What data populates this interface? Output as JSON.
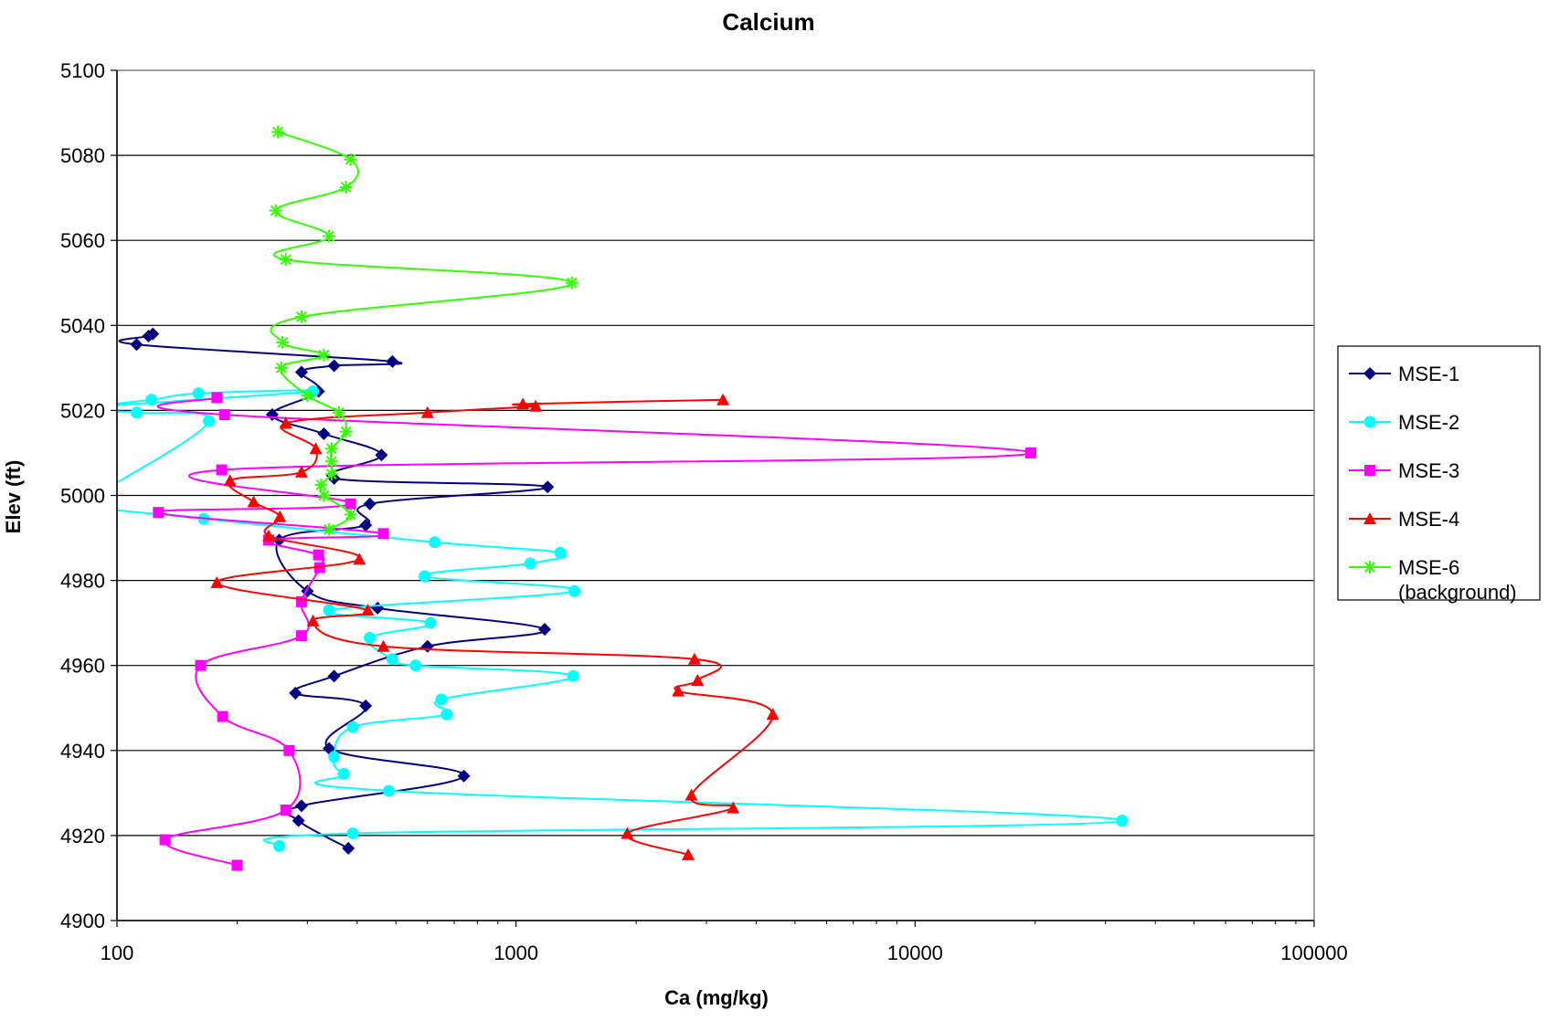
{
  "chart_data": {
    "type": "scatter",
    "title": "Calcium",
    "xlabel": "Ca (mg/kg)",
    "ylabel": "Elev (ft)",
    "x_scale": "log",
    "xlim": [
      100,
      100000
    ],
    "ylim": [
      4900,
      5100
    ],
    "x_ticks": [
      "100",
      "1000",
      "10000",
      "100000"
    ],
    "y_ticks": [
      "4900",
      "4920",
      "4940",
      "4960",
      "4980",
      "5000",
      "5020",
      "5040",
      "5060",
      "5080",
      "5100"
    ],
    "grid": "horizontal major gridlines",
    "legend_position": "right",
    "series": [
      {
        "name": "MSE-1",
        "color": "#000080",
        "marker": "diamond",
        "points": [
          [
            123,
            5038
          ],
          [
            120,
            5037.5
          ],
          [
            112,
            5035.5
          ],
          [
            490,
            5031.5
          ],
          [
            350,
            5030.5
          ],
          [
            290,
            5029
          ],
          [
            320,
            5024.5
          ],
          [
            245,
            5019
          ],
          [
            330,
            5014.5
          ],
          [
            460,
            5009.5
          ],
          [
            350,
            5004
          ],
          [
            1200,
            5002
          ],
          [
            430,
            4998
          ],
          [
            420,
            4993
          ],
          [
            255,
            4989.5
          ],
          [
            300,
            4977.5
          ],
          [
            450,
            4973.5
          ],
          [
            1180,
            4968.5
          ],
          [
            600,
            4964.5
          ],
          [
            350,
            4957.5
          ],
          [
            280,
            4953.5
          ],
          [
            420,
            4950.5
          ],
          [
            340,
            4940.5
          ],
          [
            740,
            4934
          ],
          [
            290,
            4927
          ],
          [
            285,
            4923.5
          ],
          [
            380,
            4917
          ]
        ]
      },
      {
        "name": "MSE-2",
        "color": "#00ffff",
        "marker": "circle",
        "points": [
          [
            88,
            5021
          ],
          [
            122,
            5022.5
          ],
          [
            160,
            5024
          ],
          [
            310,
            5024.5
          ],
          [
            82,
            5020.5
          ],
          [
            112,
            5019.5
          ],
          [
            170,
            5017.5
          ],
          [
            96,
            5002
          ],
          [
            80,
            4998
          ],
          [
            165,
            4994.5
          ],
          [
            625,
            4989
          ],
          [
            1290,
            4986.5
          ],
          [
            1085,
            4984
          ],
          [
            590,
            4981
          ],
          [
            1400,
            4977.5
          ],
          [
            340,
            4973
          ],
          [
            610,
            4970
          ],
          [
            430,
            4966.5
          ],
          [
            490,
            4961.5
          ],
          [
            560,
            4960
          ],
          [
            1390,
            4957.5
          ],
          [
            650,
            4952
          ],
          [
            670,
            4948.5
          ],
          [
            390,
            4945.5
          ],
          [
            350,
            4938.5
          ],
          [
            370,
            4934.5
          ],
          [
            480,
            4930.5
          ],
          [
            33000,
            4923.5
          ],
          [
            390,
            4920.5
          ],
          [
            255,
            4917.5
          ]
        ]
      },
      {
        "name": "MSE-3",
        "color": "#ff00ff",
        "marker": "square",
        "points": [
          [
            178,
            5023
          ],
          [
            186,
            5019
          ],
          [
            19500,
            5010
          ],
          [
            183,
            5006
          ],
          [
            385,
            4998
          ],
          [
            127,
            4996
          ],
          [
            465,
            4991
          ],
          [
            240,
            4989.5
          ],
          [
            320,
            4986
          ],
          [
            322,
            4983
          ],
          [
            290,
            4975
          ],
          [
            290,
            4967
          ],
          [
            162,
            4960
          ],
          [
            184,
            4948
          ],
          [
            270,
            4940
          ],
          [
            265,
            4926
          ],
          [
            132,
            4919
          ],
          [
            200,
            4913
          ]
        ]
      },
      {
        "name": "MSE-4",
        "color": "#ff0000",
        "marker": "triangle",
        "points": [
          [
            3300,
            5022.5
          ],
          [
            1040,
            5021.5
          ],
          [
            1120,
            5021
          ],
          [
            600,
            5019.5
          ],
          [
            265,
            5017
          ],
          [
            315,
            5011
          ],
          [
            290,
            5005.5
          ],
          [
            192,
            5003.5
          ],
          [
            220,
            4998.5
          ],
          [
            256,
            4995
          ],
          [
            240,
            4990.5
          ],
          [
            405,
            4985
          ],
          [
            178,
            4979.5
          ],
          [
            425,
            4973
          ],
          [
            310,
            4970.5
          ],
          [
            465,
            4964.5
          ],
          [
            2800,
            4961.5
          ],
          [
            2850,
            4956.5
          ],
          [
            2550,
            4954
          ],
          [
            4400,
            4948.5
          ],
          [
            2750,
            4929.5
          ],
          [
            3500,
            4926.5
          ],
          [
            1900,
            4920.5
          ],
          [
            2700,
            4915.5
          ]
        ]
      },
      {
        "name": "MSE-6\n(background)",
        "color": "#33ff00",
        "marker": "star",
        "points": [
          [
            253,
            5085.5
          ],
          [
            385,
            5079
          ],
          [
            375,
            5072.5
          ],
          [
            250,
            5067
          ],
          [
            340,
            5061
          ],
          [
            265,
            5055.5
          ],
          [
            1380,
            5050
          ],
          [
            290,
            5042
          ],
          [
            260,
            5036
          ],
          [
            330,
            5033
          ],
          [
            258,
            5030
          ],
          [
            300,
            5023.5
          ],
          [
            360,
            5019.5
          ],
          [
            375,
            5015
          ],
          [
            345,
            5011
          ],
          [
            345,
            5008
          ],
          [
            345,
            5005
          ],
          [
            325,
            5002.5
          ],
          [
            330,
            5000
          ],
          [
            385,
            4995.5
          ],
          [
            340,
            4992
          ]
        ]
      }
    ]
  }
}
